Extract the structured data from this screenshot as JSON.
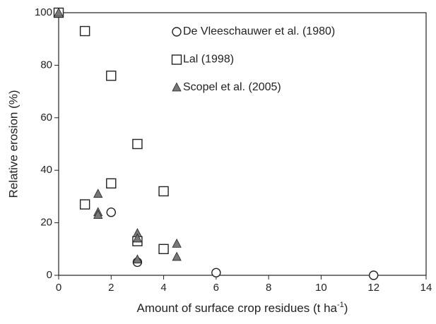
{
  "chart_data": {
    "type": "scatter",
    "x_label": "Amount of surface crop residues (t ha",
    "x_label_sup": "-1",
    "x_label_end": ")",
    "y_label": "Relative erosion (%)",
    "xlim": [
      0,
      14
    ],
    "xticks": [
      0,
      2,
      4,
      6,
      8,
      10,
      12,
      14
    ],
    "ylim": [
      0,
      100
    ],
    "yticks": [
      0,
      20,
      40,
      60,
      80,
      100
    ],
    "legend": "top-right",
    "series": [
      {
        "name": "De Vleeschauwer et al. (1980)",
        "marker": "circle",
        "color": "#ffffff",
        "edge_color": "#222222",
        "x": [
          2,
          3,
          6,
          12
        ],
        "values": [
          24,
          5,
          1,
          0
        ]
      },
      {
        "name": "Lal (1998)",
        "marker": "square",
        "color": "#ffffff",
        "edge_color": "#222222",
        "x": [
          0,
          1,
          1,
          2,
          2,
          3,
          3,
          4,
          4
        ],
        "values": [
          100,
          93,
          27,
          76,
          35,
          50,
          13,
          32,
          10
        ]
      },
      {
        "name": "Scopel et al. (2005)",
        "marker": "triangle",
        "color": "#777777",
        "edge_color": "#222222",
        "x": [
          0,
          1.5,
          1.5,
          1.5,
          3,
          3,
          3,
          4.5,
          4.5
        ],
        "values": [
          100,
          31,
          24,
          23,
          16,
          14,
          6,
          12,
          7
        ]
      }
    ]
  }
}
